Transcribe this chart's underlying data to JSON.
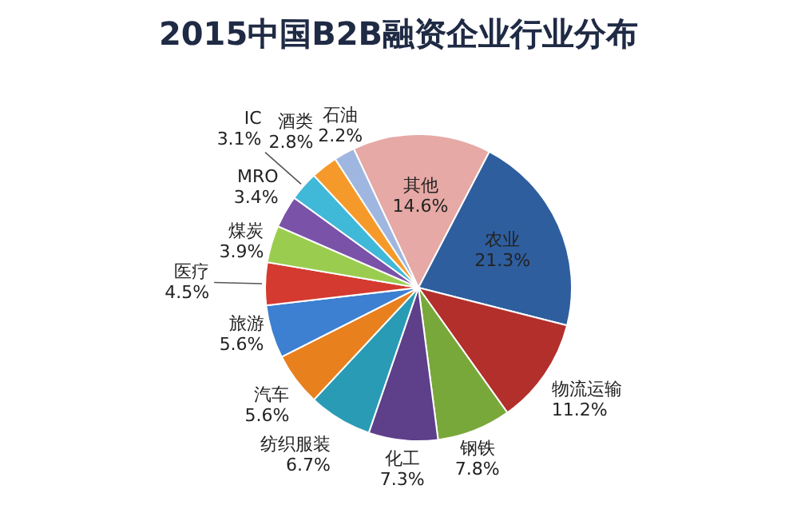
{
  "chart_data": {
    "type": "pie",
    "title": "2015中国B2B融资企业行业分布",
    "categories": [
      "其他",
      "农业",
      "物流运输",
      "钢铁",
      "化工",
      "纺织服装",
      "汽车",
      "旅游",
      "医疗",
      "煤炭",
      "MRO",
      "IC",
      "酒类",
      "石油"
    ],
    "values": [
      14.6,
      21.3,
      11.2,
      7.8,
      7.3,
      6.7,
      5.6,
      5.6,
      4.5,
      3.9,
      3.4,
      3.1,
      2.8,
      2.2
    ],
    "value_labels": [
      "14.6%",
      "21.3%",
      "11.2%",
      "7.8%",
      "7.3%",
      "6.7%",
      "5.6%",
      "5.6%",
      "4.5%",
      "3.9%",
      "3.4%",
      "3.1%",
      "2.8%",
      "2.2%"
    ],
    "colors": [
      "#e6a9a5",
      "#2e5e9e",
      "#b22f2c",
      "#79a83a",
      "#5e3f8a",
      "#2a9bb5",
      "#e8801e",
      "#3d7fd0",
      "#d43a2f",
      "#9acd4f",
      "#7a52a8",
      "#40b8d8",
      "#f59a2a",
      "#9fb7e0"
    ]
  }
}
